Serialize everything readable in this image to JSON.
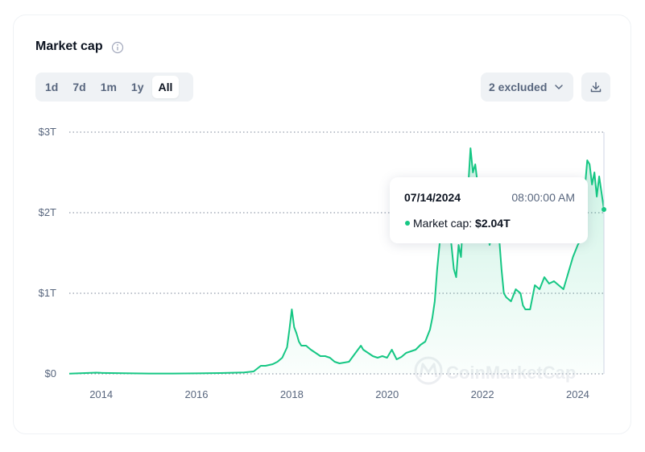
{
  "header": {
    "title": "Market cap",
    "info_icon": "info-circle-icon"
  },
  "range_tabs": [
    {
      "label": "1d",
      "active": false
    },
    {
      "label": "7d",
      "active": false
    },
    {
      "label": "1m",
      "active": false
    },
    {
      "label": "1y",
      "active": false
    },
    {
      "label": "All",
      "active": true
    }
  ],
  "controls": {
    "excluded_label": "2 excluded",
    "excluded_icon": "chevron-down-icon",
    "download_icon": "download-icon"
  },
  "tooltip": {
    "date": "07/14/2024",
    "time": "08:00:00 AM",
    "label": "Market cap: ",
    "value": "$2.04T"
  },
  "watermark": "CoinMarketCap",
  "colors": {
    "line": "#16c784",
    "text_secondary": "#58667e",
    "grid": "#58667e"
  },
  "chart_data": {
    "type": "area",
    "title": "Market cap",
    "y_tick_labels": [
      "$0",
      "$1T",
      "$2T",
      "$3T"
    ],
    "y_ticks": [
      0,
      1,
      2,
      3
    ],
    "ylim": [
      0,
      3
    ],
    "y_unit": "trillion USD",
    "x_tick_labels": [
      "2014",
      "2016",
      "2018",
      "2020",
      "2022",
      "2024"
    ],
    "x_ticks": [
      2014,
      2016,
      2018,
      2020,
      2022,
      2024
    ],
    "xlim": [
      2013.33,
      2024.55
    ],
    "grid": "horizontal dotted",
    "series": [
      {
        "name": "Market cap",
        "x": [
          2013.33,
          2013.9,
          2014.0,
          2014.5,
          2015.0,
          2015.5,
          2016.0,
          2016.5,
          2017.0,
          2017.2,
          2017.35,
          2017.45,
          2017.6,
          2017.7,
          2017.8,
          2017.9,
          2017.95,
          2018.0,
          2018.05,
          2018.1,
          2018.15,
          2018.2,
          2018.3,
          2018.4,
          2018.5,
          2018.6,
          2018.7,
          2018.8,
          2018.9,
          2019.0,
          2019.2,
          2019.3,
          2019.45,
          2019.5,
          2019.6,
          2019.7,
          2019.8,
          2019.9,
          2020.0,
          2020.1,
          2020.2,
          2020.3,
          2020.4,
          2020.5,
          2020.6,
          2020.7,
          2020.8,
          2020.9,
          2020.95,
          2021.0,
          2021.05,
          2021.1,
          2021.15,
          2021.2,
          2021.25,
          2021.3,
          2021.35,
          2021.4,
          2021.45,
          2021.5,
          2021.55,
          2021.6,
          2021.65,
          2021.7,
          2021.75,
          2021.8,
          2021.85,
          2021.9,
          2021.95,
          2022.0,
          2022.05,
          2022.1,
          2022.15,
          2022.2,
          2022.25,
          2022.3,
          2022.35,
          2022.4,
          2022.45,
          2022.5,
          2022.6,
          2022.7,
          2022.8,
          2022.85,
          2022.9,
          2023.0,
          2023.1,
          2023.2,
          2023.3,
          2023.4,
          2023.5,
          2023.6,
          2023.7,
          2023.8,
          2023.9,
          2024.0,
          2024.05,
          2024.1,
          2024.15,
          2024.2,
          2024.25,
          2024.3,
          2024.35,
          2024.4,
          2024.45,
          2024.5,
          2024.55
        ],
        "y": [
          0.002,
          0.015,
          0.012,
          0.008,
          0.004,
          0.004,
          0.006,
          0.01,
          0.018,
          0.03,
          0.1,
          0.1,
          0.12,
          0.15,
          0.2,
          0.33,
          0.55,
          0.8,
          0.58,
          0.5,
          0.4,
          0.35,
          0.35,
          0.3,
          0.26,
          0.22,
          0.22,
          0.2,
          0.15,
          0.13,
          0.15,
          0.23,
          0.35,
          0.3,
          0.26,
          0.22,
          0.2,
          0.22,
          0.2,
          0.3,
          0.18,
          0.21,
          0.26,
          0.28,
          0.3,
          0.36,
          0.4,
          0.55,
          0.7,
          0.9,
          1.3,
          1.6,
          2.0,
          2.1,
          2.3,
          1.9,
          1.6,
          1.3,
          1.2,
          1.6,
          1.45,
          2.0,
          2.2,
          2.3,
          2.8,
          2.5,
          2.6,
          2.35,
          2.3,
          2.2,
          2.05,
          1.8,
          1.6,
          1.7,
          1.95,
          1.85,
          1.7,
          1.3,
          1.0,
          0.95,
          0.9,
          1.05,
          1.0,
          0.85,
          0.8,
          0.8,
          1.1,
          1.05,
          1.2,
          1.12,
          1.15,
          1.1,
          1.05,
          1.25,
          1.45,
          1.6,
          1.65,
          1.9,
          2.3,
          2.65,
          2.6,
          2.35,
          2.5,
          2.2,
          2.45,
          2.25,
          2.04
        ]
      }
    ]
  }
}
